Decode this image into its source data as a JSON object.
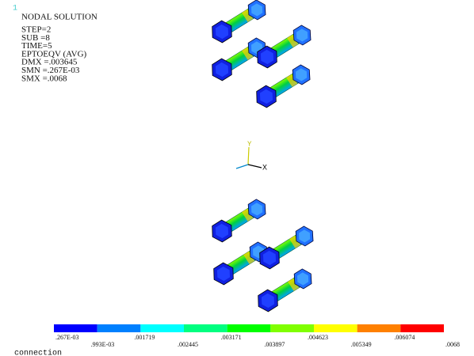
{
  "window_number": "1",
  "info": {
    "title": "NODAL SOLUTION",
    "lines": [
      "STEP=2",
      "SUB =8",
      "TIME=5",
      "EPTOEQV   (AVG)",
      "DMX =.003645",
      "SMN =.267E-03",
      "SMX =.0068"
    ]
  },
  "triad": {
    "y": "Y",
    "x": "X"
  },
  "legend": {
    "labels": [
      ".267E-03",
      ".993E-03",
      ".001719",
      ".002445",
      ".003171",
      ".003897",
      ".004623",
      ".005349",
      ".006074",
      ".0068"
    ]
  },
  "caption": "connection"
}
